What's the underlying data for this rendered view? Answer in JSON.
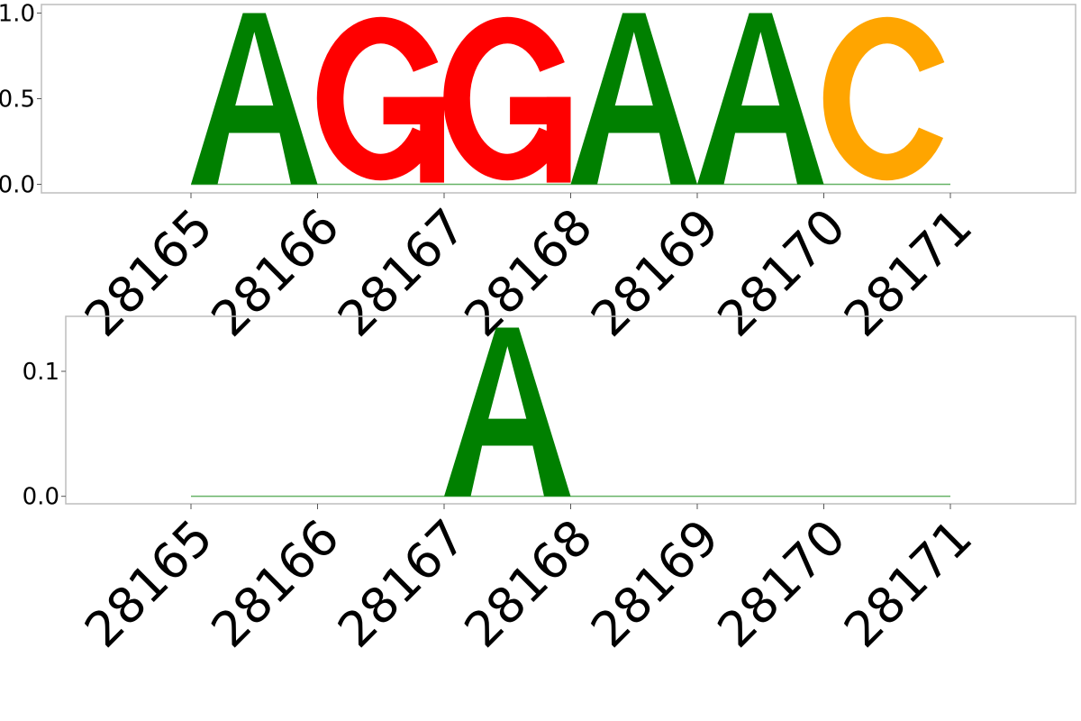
{
  "chart_data": [
    {
      "type": "sequence-logo",
      "positions": [
        28165,
        28166,
        28167,
        28168,
        28169,
        28170,
        28171
      ],
      "letters": [
        {
          "position": 28165,
          "letter": "A",
          "height": 1.0
        },
        {
          "position": 28166,
          "letter": "G",
          "height": 1.0
        },
        {
          "position": 28167,
          "letter": "G",
          "height": 1.0
        },
        {
          "position": 28168,
          "letter": "A",
          "height": 1.0
        },
        {
          "position": 28169,
          "letter": "A",
          "height": 1.0
        },
        {
          "position": 28170,
          "letter": "C",
          "height": 1.0
        }
      ],
      "y_ticks": [
        "0.0",
        "0.5",
        "1.0"
      ],
      "y_tick_values": [
        0.0,
        0.5,
        1.0
      ],
      "ylim": [
        -0.05,
        1.05
      ],
      "x_tick_labels": [
        "28165",
        "28166",
        "28167",
        "28168",
        "28169",
        "28170",
        "28171"
      ]
    },
    {
      "type": "sequence-logo",
      "positions": [
        28165,
        28166,
        28167,
        28168,
        28169,
        28170,
        28171
      ],
      "letters": [
        {
          "position": 28167,
          "letter": "A",
          "height": 0.135
        }
      ],
      "y_ticks": [
        "0.0",
        "0.1"
      ],
      "y_tick_values": [
        0.0,
        0.1
      ],
      "ylim": [
        -0.006,
        0.144
      ],
      "x_tick_labels": [
        "28165",
        "28166",
        "28167",
        "28168",
        "28169",
        "28170",
        "28171"
      ]
    }
  ],
  "colors": {
    "A": "#008000",
    "G": "#ff0000",
    "C": "#ffa500",
    "T": "#ff0000"
  }
}
